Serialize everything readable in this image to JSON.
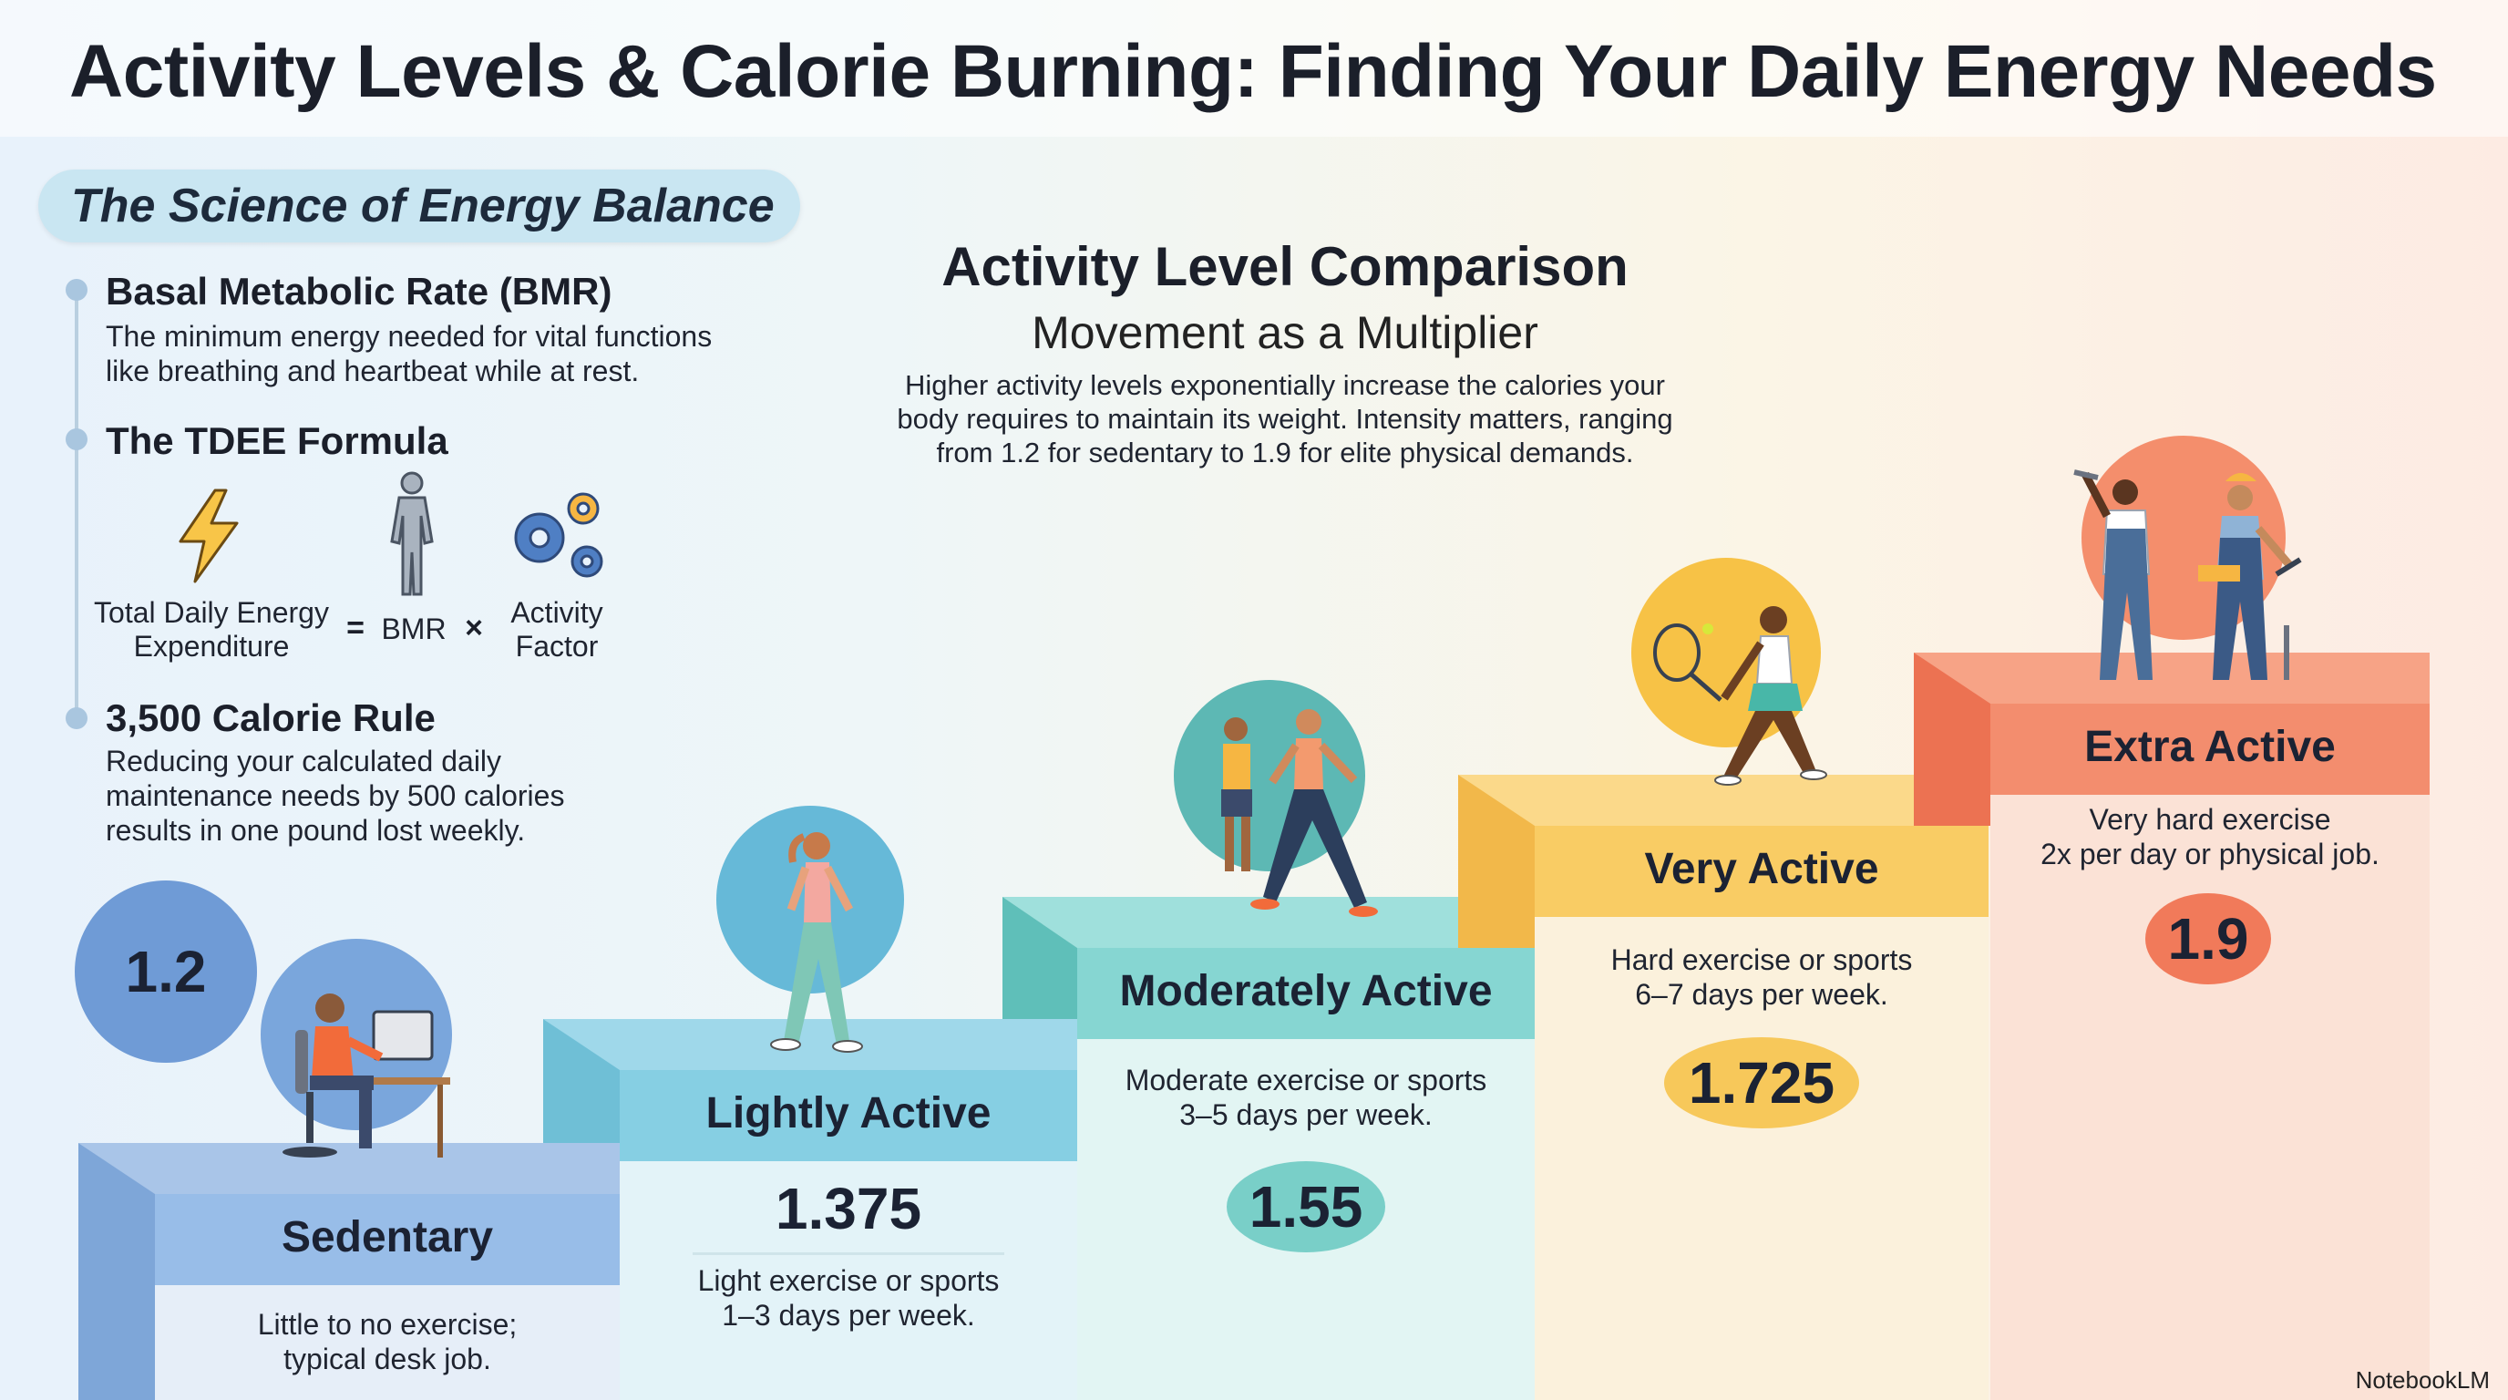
{
  "title": "Activity Levels & Calorie Burning: Finding Your Daily Energy Needs",
  "science": {
    "heading": "The Science of Energy Balance",
    "bmr": {
      "title": "Basal Metabolic Rate (BMR)",
      "lines": [
        "The minimum energy needed for vital functions",
        "like breathing and heartbeat while at rest."
      ]
    },
    "tdee": {
      "title": "The TDEE Formula",
      "total_label": [
        "Total Daily Energy",
        "Expenditure"
      ],
      "equals": "=",
      "bmr_label": "BMR",
      "times": "×",
      "activity_label": [
        "Activity",
        "Factor"
      ]
    },
    "rule": {
      "title": "3,500 Calorie Rule",
      "lines": [
        "Reducing your calculated daily",
        "maintenance needs by 500 calories",
        "results in one pound lost weekly."
      ]
    }
  },
  "comparison": {
    "title": "Activity Level Comparison",
    "subtitle": "Movement as a Multiplier",
    "description": [
      "Higher activity levels exponentially increase the calories your",
      "body requires to maintain its weight. Intensity matters, ranging",
      "from 1.2 for sedentary to 1.9 for elite physical demands."
    ]
  },
  "levels": [
    {
      "name": "Sedentary",
      "multiplier": "1.2",
      "desc": [
        "Little to no exercise;",
        "typical desk job."
      ]
    },
    {
      "name": "Lightly Active",
      "multiplier": "1.375",
      "desc": [
        "Light exercise or sports",
        "1–3 days per week."
      ]
    },
    {
      "name": "Moderately Active",
      "multiplier": "1.55",
      "desc": [
        "Moderate exercise or sports",
        "3–5 days per week."
      ]
    },
    {
      "name": "Very Active",
      "multiplier": "1.725",
      "desc": [
        "Hard exercise or sports",
        "6–7 days per week."
      ]
    },
    {
      "name": "Extra Active",
      "multiplier": "1.9",
      "desc": [
        "Very hard exercise",
        "2x per day or physical job."
      ]
    }
  ],
  "brand": "NotebookLM",
  "colors": {
    "sedentary": "#8fb4df",
    "lightly": "#7fcbe0",
    "moderately": "#7dd3cf",
    "very": "#f8c95e",
    "extra": "#f48b6a"
  },
  "icons": [
    "lightning-icon",
    "human-body-icon",
    "gears-icon"
  ]
}
